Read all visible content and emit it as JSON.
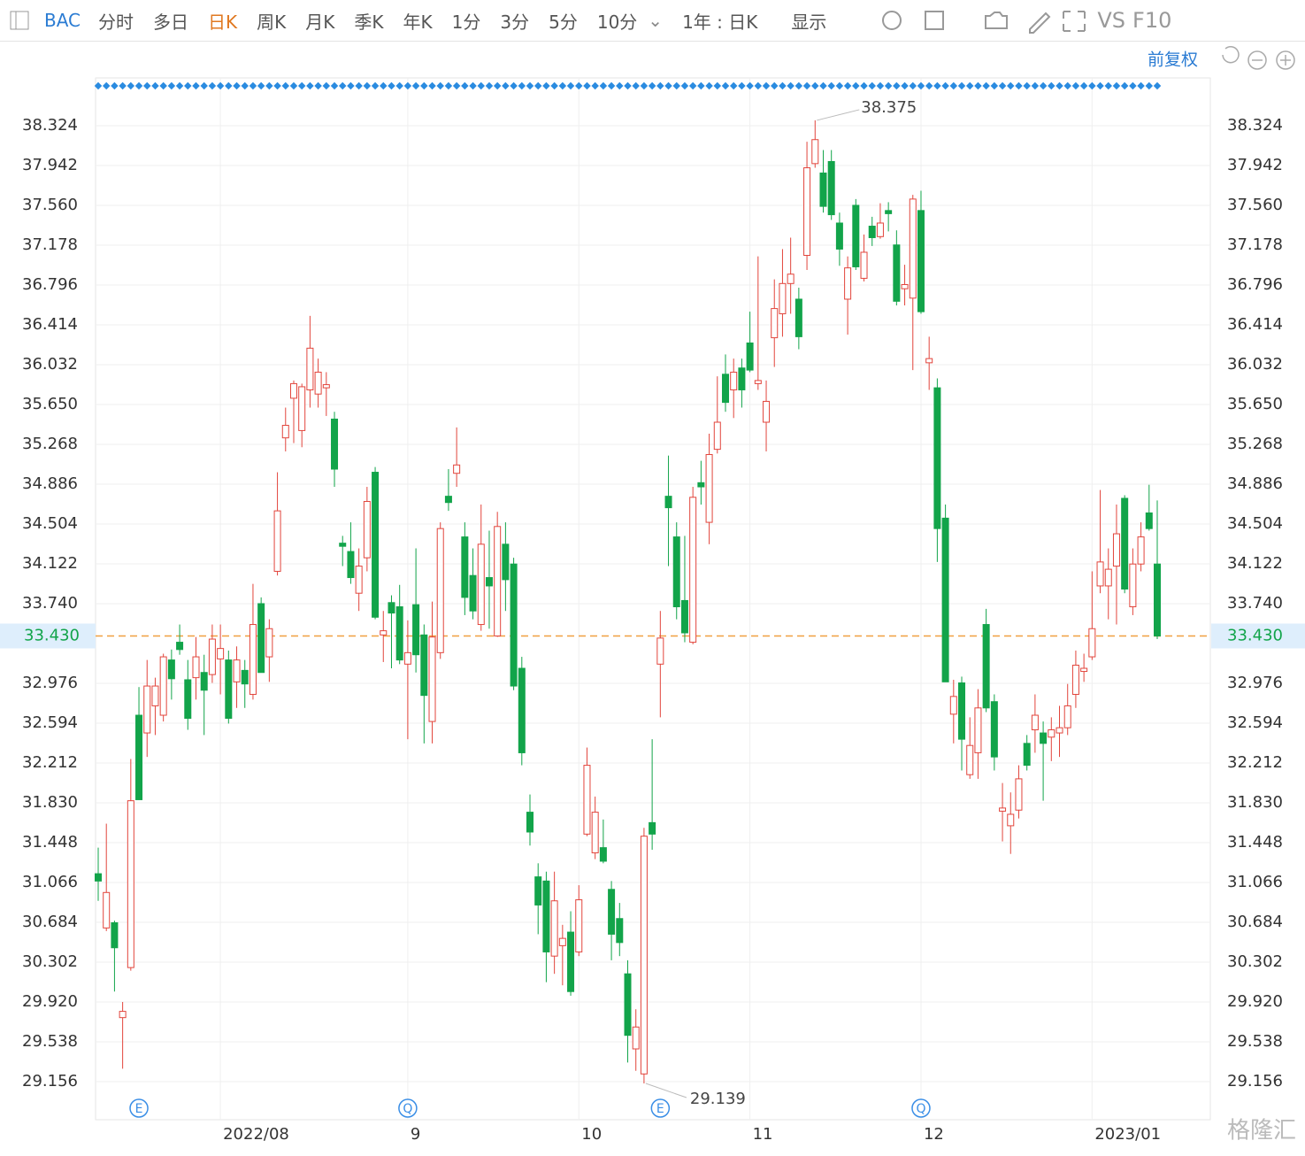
{
  "toolbar": {
    "symbol": "BAC",
    "periods": [
      "分时",
      "多日",
      "日K",
      "周K",
      "月K",
      "季K",
      "年K",
      "1分",
      "3分",
      "5分",
      "10分"
    ],
    "range": "1年 : 日K",
    "display": "显示",
    "vs": "VS",
    "f10": "F10"
  },
  "adjust": "前复权",
  "watermark": "格隆汇",
  "chart_data": {
    "type": "candlestick",
    "up_color": "#e2453c",
    "down_color": "#12a44a",
    "categories": [
      null,
      null,
      null,
      null,
      null,
      null,
      null,
      null,
      null,
      null,
      null,
      null,
      null,
      null,
      null,
      "2022/08",
      null,
      null,
      null,
      null,
      null,
      null,
      null,
      null,
      null,
      null,
      null,
      null,
      null,
      null,
      null,
      null,
      null,
      null,
      null,
      null,
      null,
      null,
      "9",
      null,
      null,
      null,
      null,
      null,
      null,
      null,
      null,
      null,
      null,
      null,
      null,
      null,
      null,
      null,
      null,
      null,
      null,
      null,
      null,
      "10",
      null,
      null,
      null,
      null,
      null,
      null,
      null,
      null,
      null,
      null,
      null,
      null,
      null,
      null,
      null,
      null,
      null,
      null,
      null,
      null,
      "11",
      null,
      null,
      null,
      null,
      null,
      null,
      null,
      null,
      null,
      null,
      null,
      null,
      null,
      null,
      null,
      null,
      null,
      null,
      null,
      null,
      "12",
      null,
      null,
      null,
      null,
      null,
      null,
      null,
      null,
      null,
      null,
      null,
      null,
      null,
      null,
      null,
      null,
      null,
      null,
      null,
      null,
      "2023/01",
      null,
      null,
      null,
      null,
      null,
      null,
      null,
      null
    ],
    "events": [
      null,
      null,
      null,
      null,
      null,
      "E",
      null,
      null,
      null,
      null,
      null,
      null,
      null,
      null,
      null,
      null,
      null,
      null,
      null,
      null,
      null,
      null,
      null,
      null,
      null,
      null,
      null,
      null,
      null,
      null,
      null,
      null,
      null,
      null,
      null,
      null,
      null,
      null,
      "Q",
      null,
      null,
      null,
      null,
      null,
      null,
      null,
      null,
      null,
      null,
      null,
      null,
      null,
      null,
      null,
      null,
      null,
      null,
      null,
      null,
      null,
      null,
      null,
      null,
      null,
      null,
      null,
      null,
      null,
      null,
      "E",
      null,
      null,
      null,
      null,
      null,
      null,
      null,
      null,
      null,
      null,
      null,
      null,
      null,
      null,
      null,
      null,
      null,
      null,
      null,
      null,
      null,
      null,
      null,
      null,
      null,
      null,
      null,
      null,
      null,
      null,
      null,
      "Q",
      null,
      null,
      null,
      null,
      null,
      null,
      null,
      null,
      null,
      null,
      null,
      null,
      null,
      null,
      null,
      null,
      null,
      null,
      null,
      null,
      null,
      null,
      null,
      null,
      null,
      null,
      null,
      null,
      null
    ],
    "open": [
      31.15,
      30.63,
      30.68,
      29.77,
      30.25,
      32.67,
      32.5,
      32.76,
      32.67,
      33.2,
      33.37,
      33.01,
      33.03,
      33.08,
      33.06,
      33.21,
      33.2,
      32.99,
      33.1,
      32.87,
      33.74,
      33.23,
      34.05,
      35.33,
      35.71,
      35.4,
      35.79,
      35.75,
      35.81,
      35.51,
      34.32,
      34.24,
      33.84,
      34.18,
      35.0,
      33.44,
      33.75,
      33.71,
      33.16,
      33.73,
      33.44,
      32.61,
      33.27,
      34.77,
      34.99,
      34.38,
      34.01,
      33.54,
      33.99,
      33.43,
      34.31,
      34.12,
      33.12,
      31.74,
      31.12,
      31.08,
      30.36,
      30.46,
      30.59,
      30.4,
      31.53,
      31.35,
      31.4,
      31.0,
      30.72,
      30.19,
      29.47,
      29.23,
      31.64,
      33.16,
      34.77,
      34.38,
      33.77,
      33.37,
      34.9,
      34.52,
      35.22,
      35.94,
      35.79,
      36.0,
      36.24,
      35.85,
      35.48,
      36.29,
      36.52,
      36.81,
      36.66,
      37.08,
      37.96,
      37.87,
      37.98,
      37.39,
      36.66,
      37.56,
      36.86,
      37.36,
      37.26,
      37.51,
      37.18,
      36.76,
      36.67,
      37.51,
      36.05,
      35.81,
      34.56,
      32.68,
      32.98,
      32.1,
      32.31,
      33.54,
      32.8,
      31.75,
      31.61,
      31.76,
      32.4,
      32.53,
      32.5,
      32.46,
      32.5,
      32.55,
      32.87,
      33.09,
      33.23,
      33.91,
      33.91,
      34.1,
      34.75,
      33.71,
      34.12,
      34.61,
      34.12
    ],
    "high": [
      31.4,
      31.63,
      30.7,
      29.92,
      32.25,
      32.94,
      33.2,
      33.03,
      33.26,
      33.3,
      33.54,
      33.2,
      33.42,
      33.25,
      33.54,
      33.54,
      33.29,
      33.33,
      33.2,
      33.93,
      33.8,
      33.59,
      35.0,
      35.62,
      35.88,
      35.85,
      36.5,
      36.09,
      35.96,
      35.58,
      34.39,
      34.52,
      34.27,
      34.86,
      35.05,
      33.67,
      33.82,
      33.92,
      33.58,
      34.27,
      33.54,
      33.76,
      34.52,
      35.03,
      35.43,
      34.52,
      34.27,
      34.69,
      34.44,
      34.62,
      34.52,
      34.18,
      33.23,
      31.91,
      31.25,
      31.17,
      31.17,
      30.66,
      30.79,
      31.04,
      32.36,
      31.89,
      31.67,
      31.08,
      30.87,
      30.32,
      29.85,
      31.59,
      32.44,
      33.67,
      35.16,
      34.52,
      34.39,
      34.86,
      35.11,
      35.37,
      35.92,
      36.13,
      36.09,
      36.09,
      36.54,
      37.07,
      35.88,
      36.85,
      37.14,
      37.25,
      36.77,
      38.17,
      38.375,
      38.09,
      38.09,
      37.49,
      37.07,
      37.62,
      37.28,
      37.45,
      37.58,
      37.59,
      37.32,
      36.99,
      37.66,
      37.7,
      36.3,
      35.9,
      34.69,
      33.01,
      33.04,
      32.65,
      32.92,
      33.69,
      32.87,
      32.02,
      31.93,
      32.19,
      32.48,
      32.87,
      32.61,
      32.65,
      32.76,
      32.97,
      33.29,
      33.26,
      34.05,
      34.83,
      34.27,
      34.69,
      34.78,
      34.27,
      34.52,
      34.88,
      34.73
    ],
    "low": [
      30.89,
      30.6,
      30.02,
      29.28,
      30.22,
      31.86,
      32.27,
      32.48,
      32.61,
      32.82,
      33.25,
      32.53,
      32.82,
      32.48,
      32.98,
      32.87,
      32.59,
      32.74,
      32.74,
      32.82,
      33.08,
      32.99,
      34.01,
      35.2,
      35.28,
      35.24,
      35.62,
      35.62,
      35.54,
      34.86,
      34.1,
      33.93,
      33.67,
      34.05,
      33.59,
      33.18,
      33.12,
      33.16,
      32.44,
      33.08,
      32.4,
      32.4,
      33.21,
      34.63,
      34.86,
      33.63,
      33.59,
      33.48,
      33.5,
      33.42,
      33.67,
      32.91,
      32.19,
      31.42,
      30.57,
      30.11,
      30.19,
      30.08,
      29.98,
      30.36,
      31.51,
      31.29,
      31.25,
      30.32,
      30.36,
      29.34,
      29.26,
      29.139,
      31.38,
      32.65,
      34.1,
      33.59,
      33.37,
      33.35,
      34.69,
      34.31,
      35.18,
      35.58,
      35.52,
      35.62,
      35.96,
      35.79,
      35.2,
      36.01,
      36.3,
      36.52,
      36.18,
      36.94,
      37.92,
      37.49,
      37.42,
      36.98,
      36.32,
      36.94,
      36.83,
      37.17,
      37.24,
      37.31,
      36.6,
      36.6,
      35.98,
      36.52,
      35.79,
      34.14,
      32.99,
      32.4,
      32.14,
      32.06,
      32.06,
      32.7,
      32.14,
      31.46,
      31.34,
      31.68,
      32.14,
      32.31,
      31.85,
      32.23,
      32.27,
      32.48,
      32.74,
      32.99,
      33.2,
      33.84,
      33.59,
      33.54,
      33.84,
      33.63,
      34.05,
      34.44,
      33.4
    ],
    "close": [
      31.08,
      30.97,
      30.44,
      29.83,
      31.85,
      31.86,
      32.95,
      32.95,
      33.23,
      33.02,
      33.3,
      32.64,
      33.23,
      32.91,
      33.4,
      33.31,
      32.64,
      33.2,
      32.97,
      33.54,
      33.08,
      33.5,
      34.63,
      35.45,
      35.85,
      35.82,
      36.19,
      35.96,
      35.84,
      35.03,
      34.29,
      33.99,
      34.1,
      34.72,
      33.61,
      33.48,
      33.65,
      33.2,
      33.27,
      33.25,
      32.86,
      33.42,
      34.46,
      34.71,
      35.07,
      33.8,
      33.67,
      34.31,
      33.91,
      34.48,
      33.97,
      32.95,
      32.31,
      31.55,
      30.85,
      30.4,
      30.89,
      30.53,
      30.02,
      30.9,
      32.19,
      31.74,
      31.27,
      30.57,
      30.49,
      29.6,
      29.68,
      31.51,
      31.53,
      33.41,
      34.66,
      33.71,
      33.46,
      34.76,
      34.86,
      35.17,
      35.48,
      35.67,
      35.96,
      35.79,
      35.98,
      35.88,
      35.68,
      36.57,
      36.81,
      36.9,
      36.3,
      37.92,
      38.19,
      37.55,
      37.47,
      37.14,
      36.96,
      36.97,
      37.11,
      37.25,
      37.39,
      37.48,
      36.64,
      36.8,
      37.62,
      36.54,
      36.09,
      34.46,
      32.99,
      32.85,
      32.44,
      32.38,
      32.74,
      32.74,
      32.27,
      31.78,
      31.72,
      32.06,
      32.19,
      32.67,
      32.4,
      32.53,
      32.55,
      32.76,
      33.15,
      33.12,
      33.5,
      34.14,
      34.07,
      34.41,
      33.88,
      34.12,
      34.38,
      34.46,
      33.43
    ],
    "ylim": [
      28.791,
      38.782
    ],
    "yticks": [
      38.324,
      37.942,
      {
        "value": 37.56,
        "label": "37.560"
      },
      37.178,
      36.796,
      36.414,
      36.032,
      {
        "value": 35.65,
        "label": "35.650"
      },
      35.268,
      34.886,
      34.504,
      34.122,
      {
        "value": 33.74,
        "label": "33.740"
      },
      32.976,
      32.594,
      32.212,
      {
        "value": 31.83,
        "label": "31.830"
      },
      31.448,
      31.066,
      30.684,
      30.302,
      {
        "value": 29.92,
        "label": "29.920"
      },
      29.538,
      29.156
    ],
    "current": {
      "value": 33.43,
      "label": "33.430"
    },
    "grid": true
  }
}
